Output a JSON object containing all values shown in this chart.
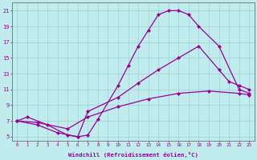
{
  "background_color": "#c0ecee",
  "line_color": "#990099",
  "grid_color": "#a0d0d4",
  "xlabel": "Windchill (Refroidissement éolien,°C)",
  "xlim": [
    -0.5,
    23.5
  ],
  "ylim": [
    4.5,
    22.0
  ],
  "xticks": [
    0,
    1,
    2,
    3,
    4,
    5,
    6,
    7,
    8,
    9,
    10,
    11,
    12,
    13,
    14,
    15,
    16,
    17,
    18,
    19,
    20,
    21,
    22,
    23
  ],
  "yticks": [
    5,
    7,
    9,
    11,
    13,
    15,
    17,
    19,
    21
  ],
  "series": [
    {
      "x": [
        0,
        1,
        3,
        5,
        6,
        7,
        8,
        10,
        11,
        12,
        13,
        14,
        15,
        16,
        17,
        18,
        20,
        22,
        23
      ],
      "y": [
        7,
        7.5,
        6.5,
        5.2,
        5.0,
        5.2,
        7.2,
        11.5,
        14.0,
        16.5,
        18.5,
        20.5,
        21.0,
        21.0,
        20.5,
        19.0,
        16.5,
        11.0,
        10.5
      ]
    },
    {
      "x": [
        0,
        2,
        4,
        6,
        7,
        10,
        12,
        14,
        16,
        18,
        20,
        21,
        22,
        23
      ],
      "y": [
        7.0,
        6.5,
        5.5,
        5.0,
        8.2,
        10.0,
        11.8,
        13.5,
        15.0,
        16.5,
        13.5,
        12.0,
        11.5,
        11.0
      ]
    },
    {
      "x": [
        0,
        2,
        5,
        7,
        10,
        13,
        16,
        19,
        22,
        23
      ],
      "y": [
        7.0,
        6.8,
        6.0,
        7.5,
        8.8,
        9.8,
        10.5,
        10.8,
        10.5,
        10.3
      ]
    }
  ]
}
